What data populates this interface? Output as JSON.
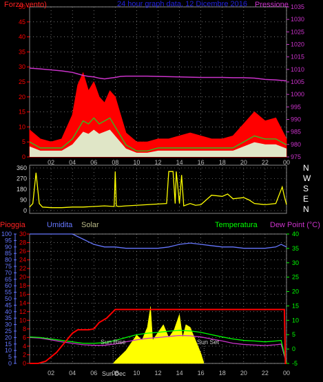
{
  "top_header": {
    "left": "Forza vento)",
    "center": "24 hour graph data, 12 Dicembre 2016",
    "right": "Pressione"
  },
  "bottom_header": {
    "pioggia": "Pioggia",
    "umidita": "Umidita",
    "solar": "Solar",
    "temperatura": "Temperatura",
    "dew_point": "Dew Point (°C)"
  },
  "annotations": {
    "sun_rise": "Sun Rise",
    "sun_set": "Sun Set",
    "sun_dec": "Sun Dec"
  },
  "dir_labels": [
    "N",
    "W",
    "S",
    "E",
    "N"
  ],
  "colors": {
    "wind_gust": "#ff0000",
    "wind_avg": "#22cc22",
    "wind_base": "#ddffdd",
    "pressure": "#cc33cc",
    "direction": "#ffff00",
    "humidity": "#6677ff",
    "solar": "#ffff00",
    "temperature": "#00ff00",
    "dew_point": "#cc33cc",
    "rain": "#ff0000",
    "grid": "#bbbbbb",
    "header_blue": "#2222dd",
    "solar_label": "#bbbb88"
  },
  "chart_data": [
    {
      "type": "area",
      "name": "wind_pressure",
      "x_ticks": [
        "02",
        "04",
        "06",
        "08",
        "10",
        "12",
        "14",
        "16",
        "18",
        "20",
        "22",
        "00"
      ],
      "left_axis": {
        "ticks": [
          0,
          5,
          10,
          15,
          20,
          25,
          30,
          35,
          40,
          45,
          50
        ],
        "ylim": [
          0,
          50
        ]
      },
      "right_axis": {
        "ticks": [
          975,
          980,
          985,
          990,
          995,
          1000,
          1005,
          1010,
          1015,
          1020,
          1025,
          1030,
          1035
        ],
        "ylim": [
          975,
          1035
        ]
      },
      "x": [
        0,
        1,
        2,
        3,
        4,
        4.5,
        5,
        5.5,
        6,
        6.5,
        7,
        7.5,
        8,
        8.5,
        9,
        10,
        11,
        12,
        13,
        14,
        15,
        16,
        17,
        18,
        19,
        20,
        21,
        22,
        23,
        24
      ],
      "series": [
        {
          "name": "Forza vento",
          "values": [
            9,
            6,
            5,
            6,
            14,
            24,
            28,
            22,
            25,
            20,
            18,
            22,
            20,
            14,
            8,
            5,
            5,
            6,
            6,
            7,
            8,
            7,
            6,
            6,
            7,
            11,
            15,
            12,
            13,
            6
          ]
        },
        {
          "values": [
            5,
            3,
            3,
            3,
            6,
            9,
            12,
            11,
            13,
            11,
            12,
            13,
            10,
            7,
            4,
            2,
            2,
            3,
            3,
            3,
            3,
            3,
            3,
            3,
            3,
            5,
            7,
            6,
            6,
            4
          ]
        },
        {
          "name": "Pressione",
          "values": [
            1010.5,
            1010.2,
            1009.8,
            1009.4,
            1008.8,
            1008.2,
            1007.6,
            1007.2,
            1007.0,
            1006.5,
            1006.2,
            1006.5,
            1006.8,
            1007.2,
            1007.3,
            1007.3,
            1007.3,
            1007.2,
            1007.1,
            1007.0,
            1006.9,
            1006.8,
            1006.8,
            1006.8,
            1006.7,
            1006.7,
            1006.5,
            1006.0,
            1005.8,
            1005.4
          ]
        }
      ]
    },
    {
      "type": "line",
      "name": "wind_direction",
      "y_ticks": [
        0,
        90,
        180,
        270,
        360
      ],
      "ylim": [
        0,
        360
      ],
      "x": [
        0,
        0.3,
        0.6,
        0.9,
        1.2,
        2,
        3,
        4,
        5,
        6,
        7,
        7.9,
        8.0,
        8.1,
        8.3,
        9,
        10,
        12.8,
        13.0,
        13.4,
        13.6,
        13.7,
        14.0,
        14.2,
        14.4,
        15,
        15.5,
        16,
        17,
        18,
        18.5,
        19,
        20,
        20.5,
        21,
        22,
        23,
        23.6,
        23.8,
        24
      ],
      "values": [
        30,
        60,
        320,
        60,
        30,
        25,
        25,
        30,
        30,
        35,
        40,
        35,
        330,
        40,
        35,
        40,
        45,
        60,
        330,
        330,
        60,
        330,
        60,
        300,
        40,
        60,
        45,
        50,
        130,
        120,
        140,
        100,
        110,
        90,
        60,
        50,
        60,
        200,
        120,
        50
      ]
    },
    {
      "type": "line",
      "name": "climate",
      "x_ticks": [
        "02",
        "04",
        "06",
        "08",
        "10",
        "12",
        "14",
        "16",
        "18",
        "20",
        "22",
        "00"
      ],
      "left_axis": {
        "ticks": [
          0,
          5,
          10,
          15,
          20,
          25,
          30,
          35,
          40,
          45,
          50,
          55,
          60,
          65,
          70,
          75,
          80,
          85,
          90,
          95,
          100
        ],
        "ylim": [
          0,
          100
        ]
      },
      "rain_axis": {
        "ticks": [
          0,
          2,
          4,
          6,
          8,
          10,
          12,
          14,
          16,
          18,
          20,
          22,
          24,
          26,
          28,
          30
        ],
        "ylim": [
          0,
          30
        ]
      },
      "right_axis": {
        "ticks": [
          -5,
          0,
          5,
          10,
          15,
          20,
          25,
          30,
          35,
          40
        ],
        "ylim": [
          -5,
          40
        ]
      },
      "series": [
        {
          "name": "Umidita",
          "x": [
            0,
            1,
            2,
            3,
            4,
            5,
            6,
            7,
            8,
            9,
            10,
            11,
            12,
            13,
            14,
            15,
            16,
            17,
            18,
            19,
            20,
            21,
            22,
            23,
            23.5,
            24
          ],
          "values": [
            100,
            100,
            100,
            100,
            100,
            96,
            92,
            90,
            90,
            89,
            89,
            89,
            89,
            90,
            92,
            93,
            92,
            91,
            90,
            90,
            89,
            89,
            89,
            90,
            92,
            90
          ]
        },
        {
          "name": "Temperatura",
          "x": [
            0,
            1,
            2,
            3,
            4,
            5,
            6,
            7,
            8,
            9,
            10,
            11,
            12,
            13,
            14,
            15,
            16,
            17,
            18,
            19,
            20,
            21,
            22,
            23,
            23.5,
            24
          ],
          "values": [
            4.2,
            4.0,
            3.5,
            3.0,
            2.5,
            2.0,
            2.0,
            2.2,
            3.0,
            4.0,
            5.0,
            5.5,
            5.8,
            6.2,
            6.5,
            6.3,
            5.8,
            5.0,
            4.2,
            3.5,
            3.0,
            2.8,
            2.5,
            2.8,
            3.0,
            -5
          ]
        },
        {
          "name": "Dew Point",
          "x": [
            0,
            1,
            2,
            3,
            4,
            5,
            6,
            7,
            8,
            9,
            10,
            11,
            12,
            13,
            14,
            15,
            16,
            17,
            18,
            19,
            20,
            21,
            22,
            23,
            23.5,
            24
          ],
          "values": [
            4.0,
            3.8,
            3.2,
            2.5,
            2.0,
            1.5,
            1.3,
            1.3,
            1.8,
            2.5,
            3.2,
            3.7,
            4.0,
            4.4,
            4.7,
            4.6,
            4.2,
            3.5,
            2.8,
            2.0,
            1.6,
            1.4,
            1.2,
            1.5,
            1.7,
            -5
          ]
        },
        {
          "name": "Pioggia",
          "x": [
            0,
            0.8,
            1.5,
            2.5,
            3.5,
            4.0,
            4.5,
            5.5,
            6.0,
            6.5,
            7.2,
            7.6,
            8.0,
            9.0,
            12,
            16,
            20,
            23.8,
            23.9,
            24
          ],
          "values": [
            0,
            0,
            0.5,
            2.5,
            5.5,
            7.0,
            7.8,
            7.8,
            8.0,
            9.5,
            10.5,
            11.5,
            12.5,
            12.5,
            12.5,
            12.5,
            12.5,
            12.5,
            0,
            0
          ]
        },
        {
          "name": "Solar",
          "x": [
            7.8,
            8.0,
            8.5,
            9.0,
            9.5,
            10,
            10.5,
            11,
            11.3,
            11.5,
            12,
            12.5,
            13,
            13.5,
            14,
            14.3,
            14.6,
            15,
            15.5,
            16,
            16.3
          ],
          "values": [
            0,
            2,
            6,
            10,
            16,
            22,
            18,
            28,
            44,
            18,
            24,
            30,
            20,
            26,
            38,
            20,
            30,
            28,
            18,
            8,
            0
          ]
        }
      ]
    }
  ]
}
